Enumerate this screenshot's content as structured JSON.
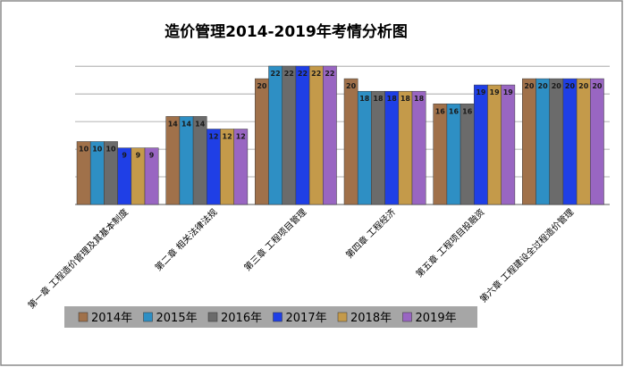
{
  "chart_data": {
    "type": "bar",
    "title": "造价管理2014-2019年考情分析图",
    "xlabel": "",
    "ylabel": "",
    "ylim": [
      0,
      22
    ],
    "grid": true,
    "legend_position": "bottom",
    "categories": [
      "第一章 工程造价管理及其基本制度",
      "第二章 相关法律法规",
      "第三章 工程项目管理",
      "第四章 工程经济",
      "第五章 工程项目投融资",
      "第六章 工程建设全过程造价管理"
    ],
    "series": [
      {
        "name": "2014年",
        "color": "#A0714A",
        "values": [
          10,
          14,
          20,
          20,
          16,
          20
        ]
      },
      {
        "name": "2015年",
        "color": "#2E8FC4",
        "values": [
          10,
          14,
          22,
          18,
          16,
          20
        ]
      },
      {
        "name": "2016年",
        "color": "#6B6B6B",
        "values": [
          10,
          14,
          22,
          18,
          16,
          20
        ]
      },
      {
        "name": "2017年",
        "color": "#1F3FE6",
        "values": [
          9,
          12,
          22,
          18,
          19,
          20
        ]
      },
      {
        "name": "2018年",
        "color": "#C49A4A",
        "values": [
          9,
          12,
          22,
          18,
          19,
          20
        ]
      },
      {
        "name": "2019年",
        "color": "#9966C2",
        "values": [
          9,
          12,
          22,
          18,
          19,
          20
        ]
      }
    ],
    "colors": {
      "frame": "#8C8C8C",
      "legend_bg": "#A6A6A6",
      "grid": "#9A9A9A",
      "data_label": "#1a1a1a"
    }
  }
}
